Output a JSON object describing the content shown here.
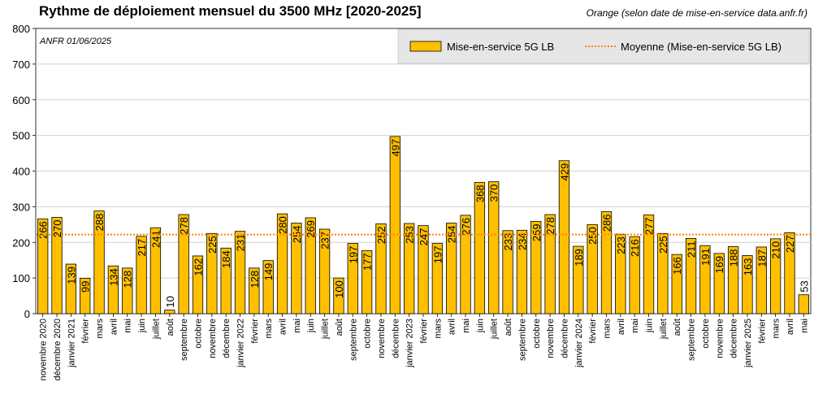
{
  "chart_data": {
    "type": "bar",
    "title": "Rythme de déploiement mensuel du 3500 MHz [2020-2025]",
    "subtitle": "Orange (selon date de mise-en-service data.anfr.fr)",
    "annotation": "ANFR 01/06/2025",
    "xlabel": "",
    "ylabel": "",
    "ylim": [
      0,
      800
    ],
    "yticks": [
      0,
      100,
      200,
      300,
      400,
      500,
      600,
      700,
      800
    ],
    "grid": true,
    "legend_position": "top-right",
    "categories": [
      "novembre 2020",
      "décembre 2020",
      "janvier 2021",
      "février",
      "mars",
      "avril",
      "mai",
      "juin",
      "juillet",
      "août",
      "septembre",
      "octobre",
      "novembre",
      "décembre",
      "janvier 2022",
      "février",
      "mars",
      "avril",
      "mai",
      "juin",
      "juillet",
      "août",
      "septembre",
      "octobre",
      "novembre",
      "décembre",
      "janvier 2023",
      "février",
      "mars",
      "avril",
      "mai",
      "juin",
      "juillet",
      "août",
      "septembre",
      "octobre",
      "novembre",
      "décembre",
      "janvier 2024",
      "février",
      "mars",
      "avril",
      "mai",
      "juin",
      "juillet",
      "août",
      "septembre",
      "octobre",
      "novembre",
      "décembre",
      "janvier 2025",
      "février",
      "mars",
      "avril",
      "mai"
    ],
    "series": [
      {
        "name": "Mise-en-service 5G LB",
        "color": "#FFC000",
        "values": [
          266,
          270,
          139,
          99,
          288,
          134,
          128,
          217,
          241,
          10,
          278,
          162,
          225,
          184,
          231,
          128,
          149,
          280,
          254,
          269,
          237,
          100,
          197,
          177,
          252,
          497,
          253,
          247,
          197,
          254,
          276,
          368,
          370,
          233,
          234,
          259,
          278,
          429,
          189,
          250,
          286,
          223,
          216,
          277,
          225,
          166,
          211,
          191,
          169,
          188,
          163,
          187,
          210,
          227,
          53
        ]
      },
      {
        "name": "Moyenne (Mise-en-service 5G LB)",
        "color": "#FF8000",
        "style": "dotted",
        "value": 222
      }
    ]
  }
}
